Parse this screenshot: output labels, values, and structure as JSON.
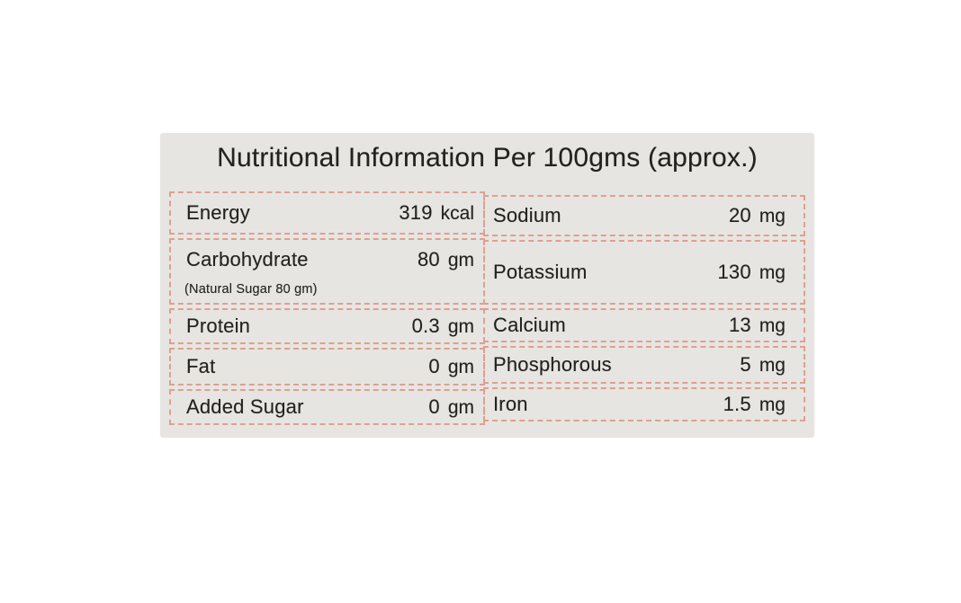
{
  "colors": {
    "page_bg": "#ffffff",
    "card_bg": "#e7e5e1",
    "dash_border": "#dda092",
    "text": "#24221e"
  },
  "label": {
    "title": "Nutritional Information Per 100gms (approx.)",
    "left_rows": [
      {
        "name": "Energy",
        "value": "319",
        "unit": "kcal"
      },
      {
        "name": "Carbohydrate",
        "value": "80",
        "unit": "gm",
        "note": "(Natural Sugar 80 gm)"
      },
      {
        "name": "Protein",
        "value": "0.3",
        "unit": "gm"
      },
      {
        "name": "Fat",
        "value": "0",
        "unit": "gm"
      },
      {
        "name": "Added Sugar",
        "value": "0",
        "unit": "gm"
      }
    ],
    "right_rows": [
      {
        "name": "Sodium",
        "value": "20",
        "unit": "mg"
      },
      {
        "name": "Potassium",
        "value": "130",
        "unit": "mg"
      },
      {
        "name": "Calcium",
        "value": "13",
        "unit": "mg"
      },
      {
        "name": "Phosphorous",
        "value": "5",
        "unit": "mg"
      },
      {
        "name": "Iron",
        "value": "1.5",
        "unit": "mg"
      }
    ]
  }
}
